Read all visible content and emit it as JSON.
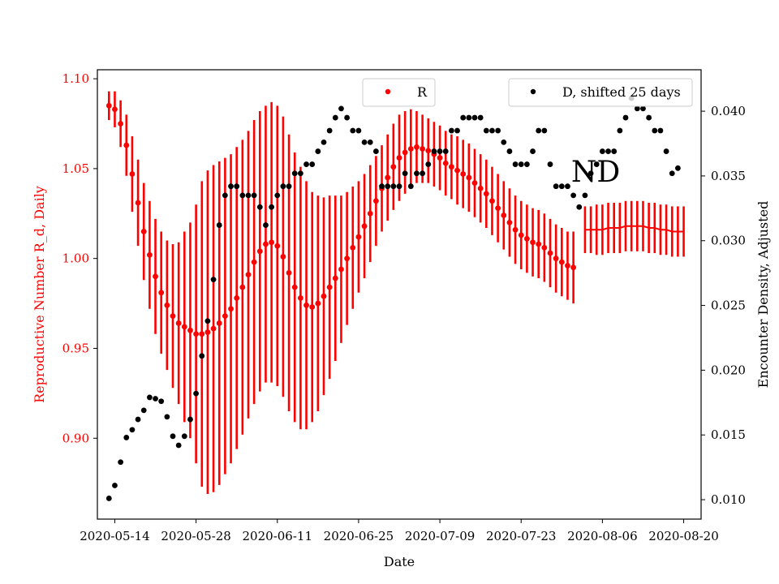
{
  "chart_data": {
    "type": "scatter",
    "xlabel": "Date",
    "ylabel_left": "Reproductive Number R_d, Daily",
    "ylabel_right": "Encounter Density, Adjusted",
    "x_range": [
      "2020-05-11",
      "2020-08-23"
    ],
    "ylim_left": [
      0.855,
      1.105
    ],
    "ylim_right": [
      0.0085,
      0.0432
    ],
    "x_ticks": [
      "2020-05-14",
      "2020-05-28",
      "2020-06-11",
      "2020-06-25",
      "2020-07-09",
      "2020-07-23",
      "2020-08-06",
      "2020-08-20"
    ],
    "y_ticks_left": [
      "0.90",
      "0.95",
      "1.00",
      "1.05",
      "1.10"
    ],
    "y_ticks_right": [
      "0.010",
      "0.015",
      "0.020",
      "0.025",
      "0.030",
      "0.035",
      "0.040"
    ],
    "annotation": "ND",
    "colors": {
      "R": "#ff0000",
      "D": "#000000"
    },
    "legend": [
      {
        "label": "R",
        "color": "#ff0000",
        "placement": "top-center"
      },
      {
        "label": "D, shifted 25 days",
        "color": "#000000",
        "placement": "top-right"
      }
    ],
    "series_R": {
      "name": "R",
      "start_date": "2020-05-13",
      "step_days": 1,
      "values": [
        1.085,
        1.083,
        1.075,
        1.063,
        1.047,
        1.031,
        1.015,
        1.002,
        0.99,
        0.981,
        0.974,
        0.968,
        0.964,
        0.962,
        0.96,
        0.958,
        0.958,
        0.959,
        0.961,
        0.964,
        0.968,
        0.972,
        0.978,
        0.984,
        0.991,
        0.998,
        1.004,
        1.008,
        1.009,
        1.007,
        1.001,
        0.992,
        0.984,
        0.978,
        0.974,
        0.973,
        0.975,
        0.979,
        0.984,
        0.989,
        0.994,
        1.0,
        1.006,
        1.012,
        1.018,
        1.025,
        1.032,
        1.039,
        1.045,
        1.051,
        1.056,
        1.059,
        1.061,
        1.062,
        1.061,
        1.06,
        1.058,
        1.056,
        1.053,
        1.051,
        1.049,
        1.047,
        1.045,
        1.042,
        1.039,
        1.036,
        1.032,
        1.028,
        1.024,
        1.02,
        1.016,
        1.013,
        1.011,
        1.009,
        1.008,
        1.006,
        1.003,
        1.0,
        0.998,
        0.996,
        0.995
      ],
      "error_half_width": [
        0.008,
        0.01,
        0.013,
        0.017,
        0.021,
        0.024,
        0.027,
        0.03,
        0.032,
        0.034,
        0.036,
        0.04,
        0.045,
        0.053,
        0.06,
        0.072,
        0.085,
        0.09,
        0.091,
        0.09,
        0.088,
        0.086,
        0.084,
        0.082,
        0.08,
        0.079,
        0.078,
        0.077,
        0.078,
        0.078,
        0.078,
        0.077,
        0.075,
        0.073,
        0.069,
        0.064,
        0.06,
        0.055,
        0.051,
        0.046,
        0.041,
        0.037,
        0.034,
        0.031,
        0.029,
        0.027,
        0.025,
        0.024,
        0.024,
        0.024,
        0.024,
        0.023,
        0.022,
        0.02,
        0.019,
        0.018,
        0.018,
        0.018,
        0.018,
        0.018,
        0.019,
        0.019,
        0.019,
        0.019,
        0.019,
        0.019,
        0.019,
        0.019,
        0.019,
        0.019,
        0.019,
        0.019,
        0.019,
        0.019,
        0.019,
        0.019,
        0.019,
        0.019,
        0.019,
        0.019,
        0.02
      ]
    },
    "series_R_extension": {
      "start_date": "2020-08-03",
      "step_days": 1,
      "values": [
        1.016,
        1.016,
        1.016,
        1.016,
        1.017,
        1.017,
        1.017,
        1.018,
        1.018,
        1.018,
        1.018,
        1.017,
        1.017,
        1.016,
        1.016,
        1.015,
        1.015,
        1.015
      ],
      "error_half_width": [
        0.013,
        0.013,
        0.014,
        0.014,
        0.014,
        0.014,
        0.014,
        0.014,
        0.014,
        0.014,
        0.014,
        0.014,
        0.014,
        0.014,
        0.014,
        0.014,
        0.014,
        0.014
      ]
    },
    "series_D": {
      "name": "D, shifted 25 days",
      "points": [
        [
          "2020-05-13",
          0.0101
        ],
        [
          "2020-05-14",
          0.0111
        ],
        [
          "2020-05-15",
          0.0129
        ],
        [
          "2020-05-16",
          0.0148
        ],
        [
          "2020-05-17",
          0.0154
        ],
        [
          "2020-05-18",
          0.0162
        ],
        [
          "2020-05-19",
          0.0169
        ],
        [
          "2020-05-20",
          0.0179
        ],
        [
          "2020-05-21",
          0.0178
        ],
        [
          "2020-05-22",
          0.0176
        ],
        [
          "2020-05-23",
          0.0164
        ],
        [
          "2020-05-24",
          0.0149
        ],
        [
          "2020-05-25",
          0.0142
        ],
        [
          "2020-05-26",
          0.0149
        ],
        [
          "2020-05-27",
          0.0162
        ],
        [
          "2020-05-28",
          0.0182
        ],
        [
          "2020-05-29",
          0.0211
        ],
        [
          "2020-05-30",
          0.0238
        ],
        [
          "2020-05-31",
          0.027
        ],
        [
          "2020-06-01",
          0.0312
        ],
        [
          "2020-06-02",
          0.0335
        ],
        [
          "2020-06-03",
          0.0342
        ],
        [
          "2020-06-04",
          0.0342
        ],
        [
          "2020-06-05",
          0.0335
        ],
        [
          "2020-06-06",
          0.0335
        ],
        [
          "2020-06-07",
          0.0335
        ],
        [
          "2020-06-08",
          0.0326
        ],
        [
          "2020-06-09",
          0.0312
        ],
        [
          "2020-06-10",
          0.0326
        ],
        [
          "2020-06-11",
          0.0335
        ],
        [
          "2020-06-12",
          0.0342
        ],
        [
          "2020-06-13",
          0.0342
        ],
        [
          "2020-06-14",
          0.0352
        ],
        [
          "2020-06-15",
          0.0352
        ],
        [
          "2020-06-16",
          0.0359
        ],
        [
          "2020-06-17",
          0.0359
        ],
        [
          "2020-06-18",
          0.0369
        ],
        [
          "2020-06-19",
          0.0376
        ],
        [
          "2020-06-20",
          0.0385
        ],
        [
          "2020-06-21",
          0.0395
        ],
        [
          "2020-06-22",
          0.0402
        ],
        [
          "2020-06-23",
          0.0395
        ],
        [
          "2020-06-24",
          0.0385
        ],
        [
          "2020-06-25",
          0.0385
        ],
        [
          "2020-06-26",
          0.0376
        ],
        [
          "2020-06-27",
          0.0376
        ],
        [
          "2020-06-28",
          0.0369
        ],
        [
          "2020-06-29",
          0.0342
        ],
        [
          "2020-06-30",
          0.0342
        ],
        [
          "2020-07-01",
          0.0342
        ],
        [
          "2020-07-02",
          0.0342
        ],
        [
          "2020-07-03",
          0.0352
        ],
        [
          "2020-07-04",
          0.0342
        ],
        [
          "2020-07-05",
          0.0352
        ],
        [
          "2020-07-06",
          0.0352
        ],
        [
          "2020-07-07",
          0.0359
        ],
        [
          "2020-07-08",
          0.0369
        ],
        [
          "2020-07-09",
          0.0369
        ],
        [
          "2020-07-10",
          0.0369
        ],
        [
          "2020-07-11",
          0.0385
        ],
        [
          "2020-07-12",
          0.0385
        ],
        [
          "2020-07-13",
          0.0395
        ],
        [
          "2020-07-14",
          0.0395
        ],
        [
          "2020-07-15",
          0.0395
        ],
        [
          "2020-07-16",
          0.0395
        ],
        [
          "2020-07-17",
          0.0385
        ],
        [
          "2020-07-18",
          0.0385
        ],
        [
          "2020-07-19",
          0.0385
        ],
        [
          "2020-07-20",
          0.0376
        ],
        [
          "2020-07-21",
          0.0369
        ],
        [
          "2020-07-22",
          0.0359
        ],
        [
          "2020-07-23",
          0.0359
        ],
        [
          "2020-07-24",
          0.0359
        ],
        [
          "2020-07-25",
          0.0369
        ],
        [
          "2020-07-26",
          0.0385
        ],
        [
          "2020-07-27",
          0.0385
        ],
        [
          "2020-07-28",
          0.0359
        ],
        [
          "2020-07-29",
          0.0342
        ],
        [
          "2020-07-30",
          0.0342
        ],
        [
          "2020-07-31",
          0.0342
        ],
        [
          "2020-08-01",
          0.0335
        ],
        [
          "2020-08-02",
          0.0326
        ],
        [
          "2020-08-03",
          0.0335
        ],
        [
          "2020-08-04",
          0.0352
        ],
        [
          "2020-08-05",
          0.0359
        ],
        [
          "2020-08-06",
          0.0369
        ],
        [
          "2020-08-07",
          0.0369
        ],
        [
          "2020-08-08",
          0.0369
        ],
        [
          "2020-08-09",
          0.0385
        ],
        [
          "2020-08-10",
          0.0395
        ],
        [
          "2020-08-11",
          0.041
        ],
        [
          "2020-08-12",
          0.0402
        ],
        [
          "2020-08-13",
          0.0402
        ],
        [
          "2020-08-14",
          0.0395
        ],
        [
          "2020-08-15",
          0.0385
        ],
        [
          "2020-08-16",
          0.0385
        ],
        [
          "2020-08-17",
          0.0369
        ],
        [
          "2020-08-18",
          0.0352
        ],
        [
          "2020-08-19",
          0.0356
        ]
      ]
    }
  }
}
